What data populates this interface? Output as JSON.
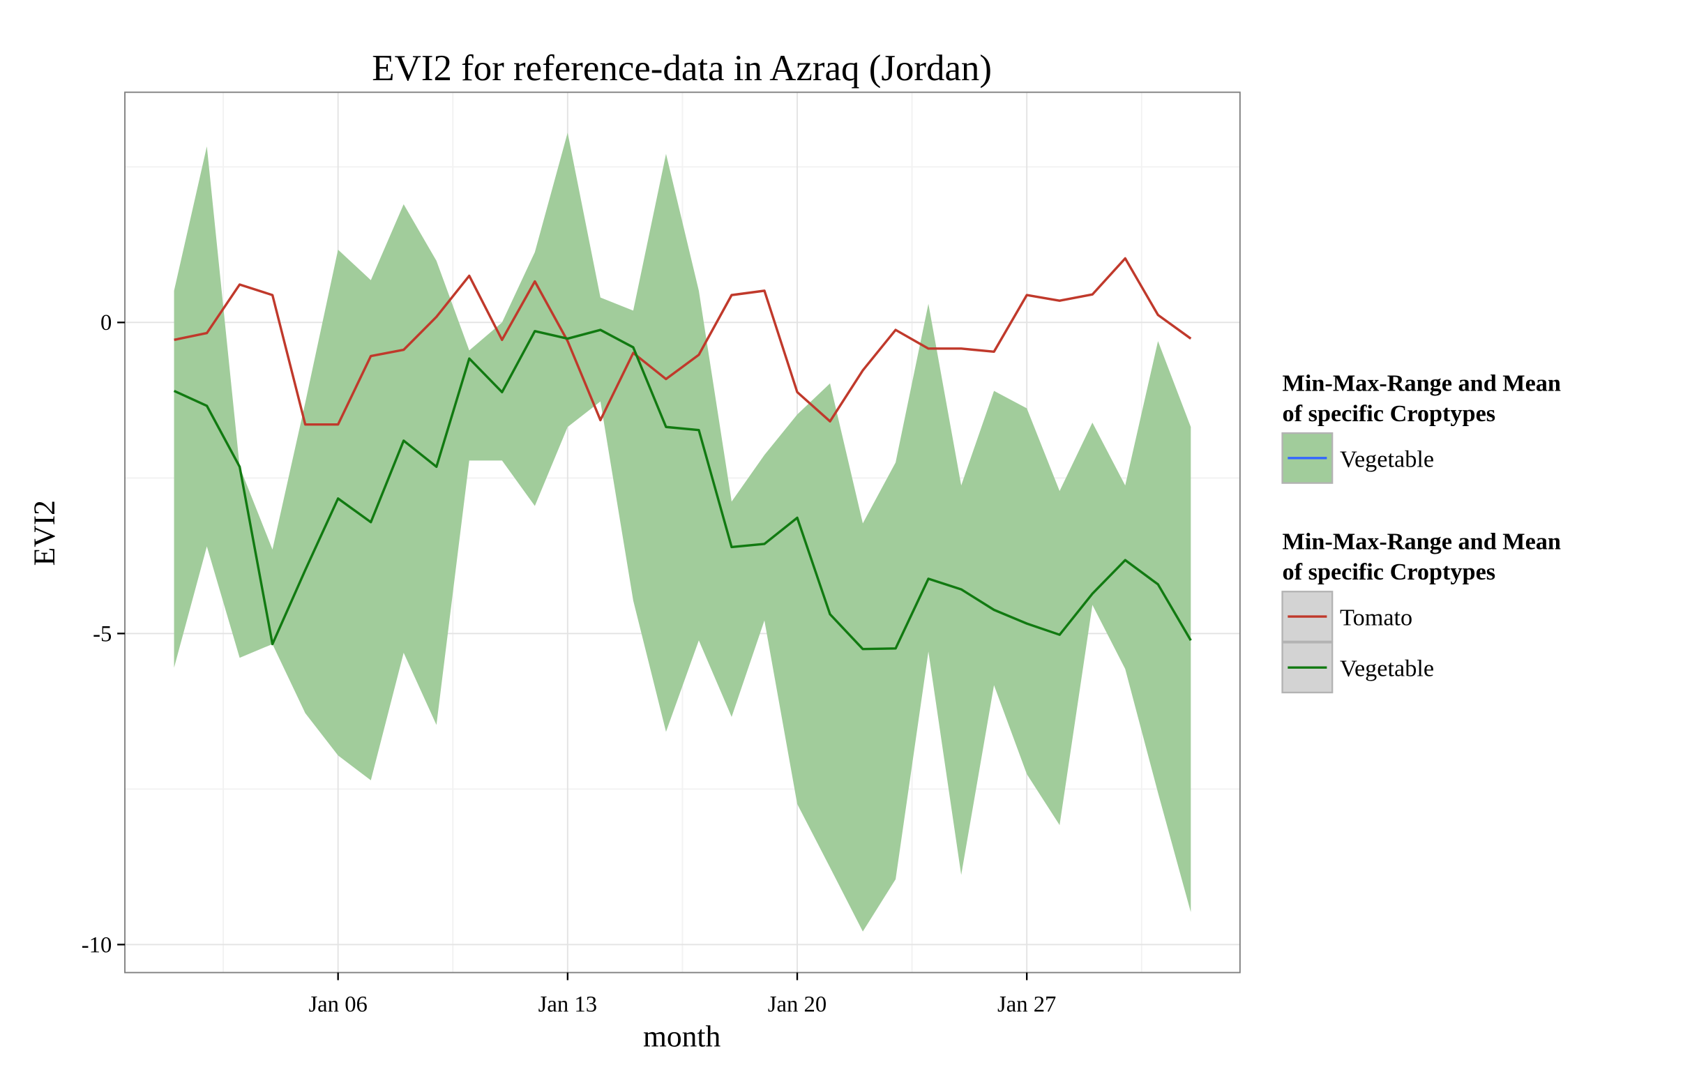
{
  "chart_data": {
    "type": "line",
    "title": "EVI2 for reference-data in Azraq (Jordan)",
    "xlabel": "month",
    "ylabel": "EVI2",
    "x_start_date": "Jan 01",
    "x_tick_labels": [
      "Jan 06",
      "Jan 13",
      "Jan 20",
      "Jan 27"
    ],
    "x_tick_days": [
      6,
      13,
      20,
      27
    ],
    "x_days": [
      1,
      2,
      3,
      4,
      5,
      6,
      7,
      8,
      9,
      10,
      11,
      12,
      13,
      14,
      15,
      16,
      17,
      18,
      19,
      20,
      21,
      22,
      23,
      24,
      25,
      26,
      27,
      28,
      29,
      30,
      31,
      32
    ],
    "xlim": [
      -0.5,
      33.5
    ],
    "y_ticks": [
      0,
      -5,
      -10
    ],
    "y_tick_labels": [
      "0",
      "-5",
      "-10"
    ],
    "ylim": [
      -10.45,
      3.7
    ],
    "grid": true,
    "legend_position": "right",
    "ribbon": {
      "name": "Vegetable",
      "fill": "#a1cc9b",
      "min": [
        -5.55,
        -3.6,
        -5.39,
        -5.17,
        -6.28,
        -6.96,
        -7.36,
        -5.31,
        -6.47,
        -2.22,
        -2.22,
        -2.95,
        -1.68,
        -1.27,
        -4.47,
        -6.58,
        -5.11,
        -6.34,
        -4.79,
        -7.74,
        -8.76,
        -9.79,
        -8.95,
        -5.29,
        -8.88,
        -5.83,
        -7.26,
        -8.08,
        -4.54,
        -5.57,
        -7.56,
        -9.48
      ],
      "max": [
        0.51,
        2.83,
        -2.32,
        -3.65,
        -1.29,
        1.17,
        0.68,
        1.9,
        0.99,
        -0.45,
        0.0,
        1.13,
        3.05,
        0.4,
        0.19,
        2.71,
        0.51,
        -2.88,
        -2.13,
        -1.48,
        -0.98,
        -3.23,
        -2.25,
        0.3,
        -2.62,
        -1.1,
        -1.38,
        -2.71,
        -1.61,
        -2.62,
        -0.3,
        -1.68
      ]
    },
    "series": [
      {
        "name": "Tomato",
        "color": "#c0392b",
        "values": [
          -0.28,
          -0.17,
          0.61,
          0.44,
          -1.64,
          -1.64,
          -0.54,
          -0.44,
          0.09,
          0.75,
          -0.28,
          0.66,
          -0.3,
          -1.57,
          -0.49,
          -0.91,
          -0.52,
          0.44,
          0.51,
          -1.12,
          -1.59,
          -0.77,
          -0.12,
          -0.42,
          -0.42,
          -0.47,
          0.44,
          0.35,
          0.45,
          1.03,
          0.12,
          -0.26
        ]
      },
      {
        "name": "Vegetable",
        "color": "#117a11",
        "values": [
          -1.1,
          -1.34,
          -2.32,
          -5.17,
          -3.98,
          -2.83,
          -3.21,
          -1.9,
          -2.32,
          -0.58,
          -1.12,
          -0.14,
          -0.26,
          -0.12,
          -0.4,
          -1.68,
          -1.73,
          -3.61,
          -3.56,
          -3.14,
          -4.69,
          -5.25,
          -5.24,
          -4.12,
          -4.29,
          -4.62,
          -4.84,
          -5.02,
          -4.36,
          -3.82,
          -4.21,
          -5.11
        ]
      }
    ],
    "legends": [
      {
        "title_line1": "Min-Max-Range and Mean",
        "title_line2": "of specific Croptypes",
        "items": [
          {
            "label": "Vegetable",
            "key_fill": "#a1cc9b",
            "key_line": "#3366ff"
          }
        ]
      },
      {
        "title_line1": "Min-Max-Range and Mean",
        "title_line2": "of specific Croptypes",
        "items": [
          {
            "label": "Tomato",
            "key_fill": "#d3d3d3",
            "key_line": "#c0392b"
          },
          {
            "label": "Vegetable",
            "key_fill": "#d3d3d3",
            "key_line": "#117a11"
          }
        ]
      }
    ]
  }
}
